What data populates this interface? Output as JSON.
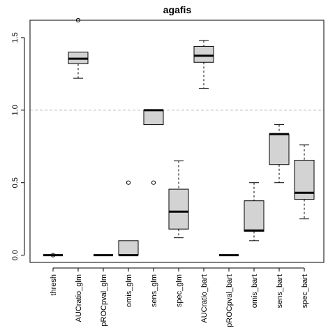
{
  "chart_data": {
    "type": "boxplot",
    "title": "agafis",
    "xlabel": "",
    "ylabel": "",
    "ylim": [
      -0.05,
      1.62
    ],
    "y_ticks": [
      0.0,
      0.5,
      1.0,
      1.5
    ],
    "y_tick_labels": [
      "0.0",
      "0.5",
      "1.0",
      "1.5"
    ],
    "grid": false,
    "reference_line": {
      "y": 1.0,
      "style": "dashed",
      "color": "#bbbbbb"
    },
    "box_fill": "#d3d3d3",
    "categories": [
      "thresh",
      "AUCratio_glm",
      "pROCpval_glm",
      "omis_glm",
      "sens_glm",
      "spec_glm",
      "AUCratio_bart",
      "pROCpval_bart",
      "omis_bart",
      "sens_bart",
      "spec_bart"
    ],
    "boxes": [
      {
        "name": "thresh",
        "min": 0.0,
        "q1": 0.0,
        "median": 0.0,
        "q3": 0.0,
        "max": 0.0,
        "outliers": [
          0.0
        ]
      },
      {
        "name": "AUCratio_glm",
        "min": 1.22,
        "q1": 1.32,
        "median": 1.355,
        "q3": 1.4,
        "max": 1.4,
        "outliers": [
          1.62
        ]
      },
      {
        "name": "pROCpval_glm",
        "min": 0.0,
        "q1": 0.0,
        "median": 0.0,
        "q3": 0.0,
        "max": 0.0,
        "outliers": []
      },
      {
        "name": "omis_glm",
        "min": 0.0,
        "q1": 0.0,
        "median": 0.0,
        "q3": 0.1,
        "max": 0.1,
        "outliers": [
          0.5
        ]
      },
      {
        "name": "sens_glm",
        "min": 0.9,
        "q1": 0.9,
        "median": 1.0,
        "q3": 1.0,
        "max": 1.0,
        "outliers": [
          0.5
        ]
      },
      {
        "name": "spec_glm",
        "min": 0.12,
        "q1": 0.18,
        "median": 0.3,
        "q3": 0.455,
        "max": 0.65,
        "outliers": []
      },
      {
        "name": "AUCratio_bart",
        "min": 1.15,
        "q1": 1.33,
        "median": 1.375,
        "q3": 1.44,
        "max": 1.48,
        "outliers": []
      },
      {
        "name": "pROCpval_bart",
        "min": 0.0,
        "q1": 0.0,
        "median": 0.0,
        "q3": 0.0,
        "max": 0.0,
        "outliers": []
      },
      {
        "name": "omis_bart",
        "min": 0.1,
        "q1": 0.165,
        "median": 0.17,
        "q3": 0.375,
        "max": 0.5,
        "outliers": []
      },
      {
        "name": "sens_bart",
        "min": 0.5,
        "q1": 0.625,
        "median": 0.835,
        "q3": 0.835,
        "max": 0.9,
        "outliers": []
      },
      {
        "name": "spec_bart",
        "min": 0.25,
        "q1": 0.385,
        "median": 0.43,
        "q3": 0.655,
        "max": 0.76,
        "outliers": []
      }
    ]
  }
}
